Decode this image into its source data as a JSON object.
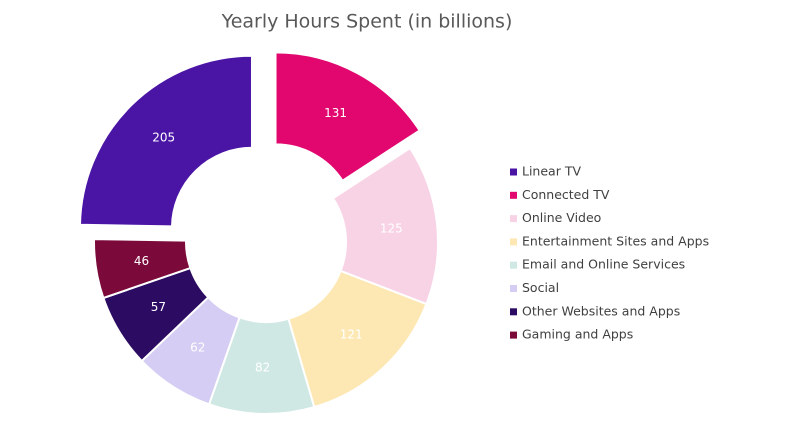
{
  "chart_data": {
    "type": "donut",
    "title": "Yearly Hours Spent (in billions)",
    "categories": [
      "Linear TV",
      "Connected TV",
      "Online Video",
      "Entertainment Sites and Apps",
      "Email and Online Services",
      "Social",
      "Other Websites and Apps",
      "Gaming and Apps"
    ],
    "values": [
      205,
      131,
      125,
      121,
      82,
      62,
      57,
      46
    ],
    "colors": [
      "#4a14a5",
      "#e2066f",
      "#f8d3e5",
      "#fde8b4",
      "#cfe8e4",
      "#d5cdf3",
      "#2c0b63",
      "#7b0a3b"
    ],
    "legend": "right"
  }
}
